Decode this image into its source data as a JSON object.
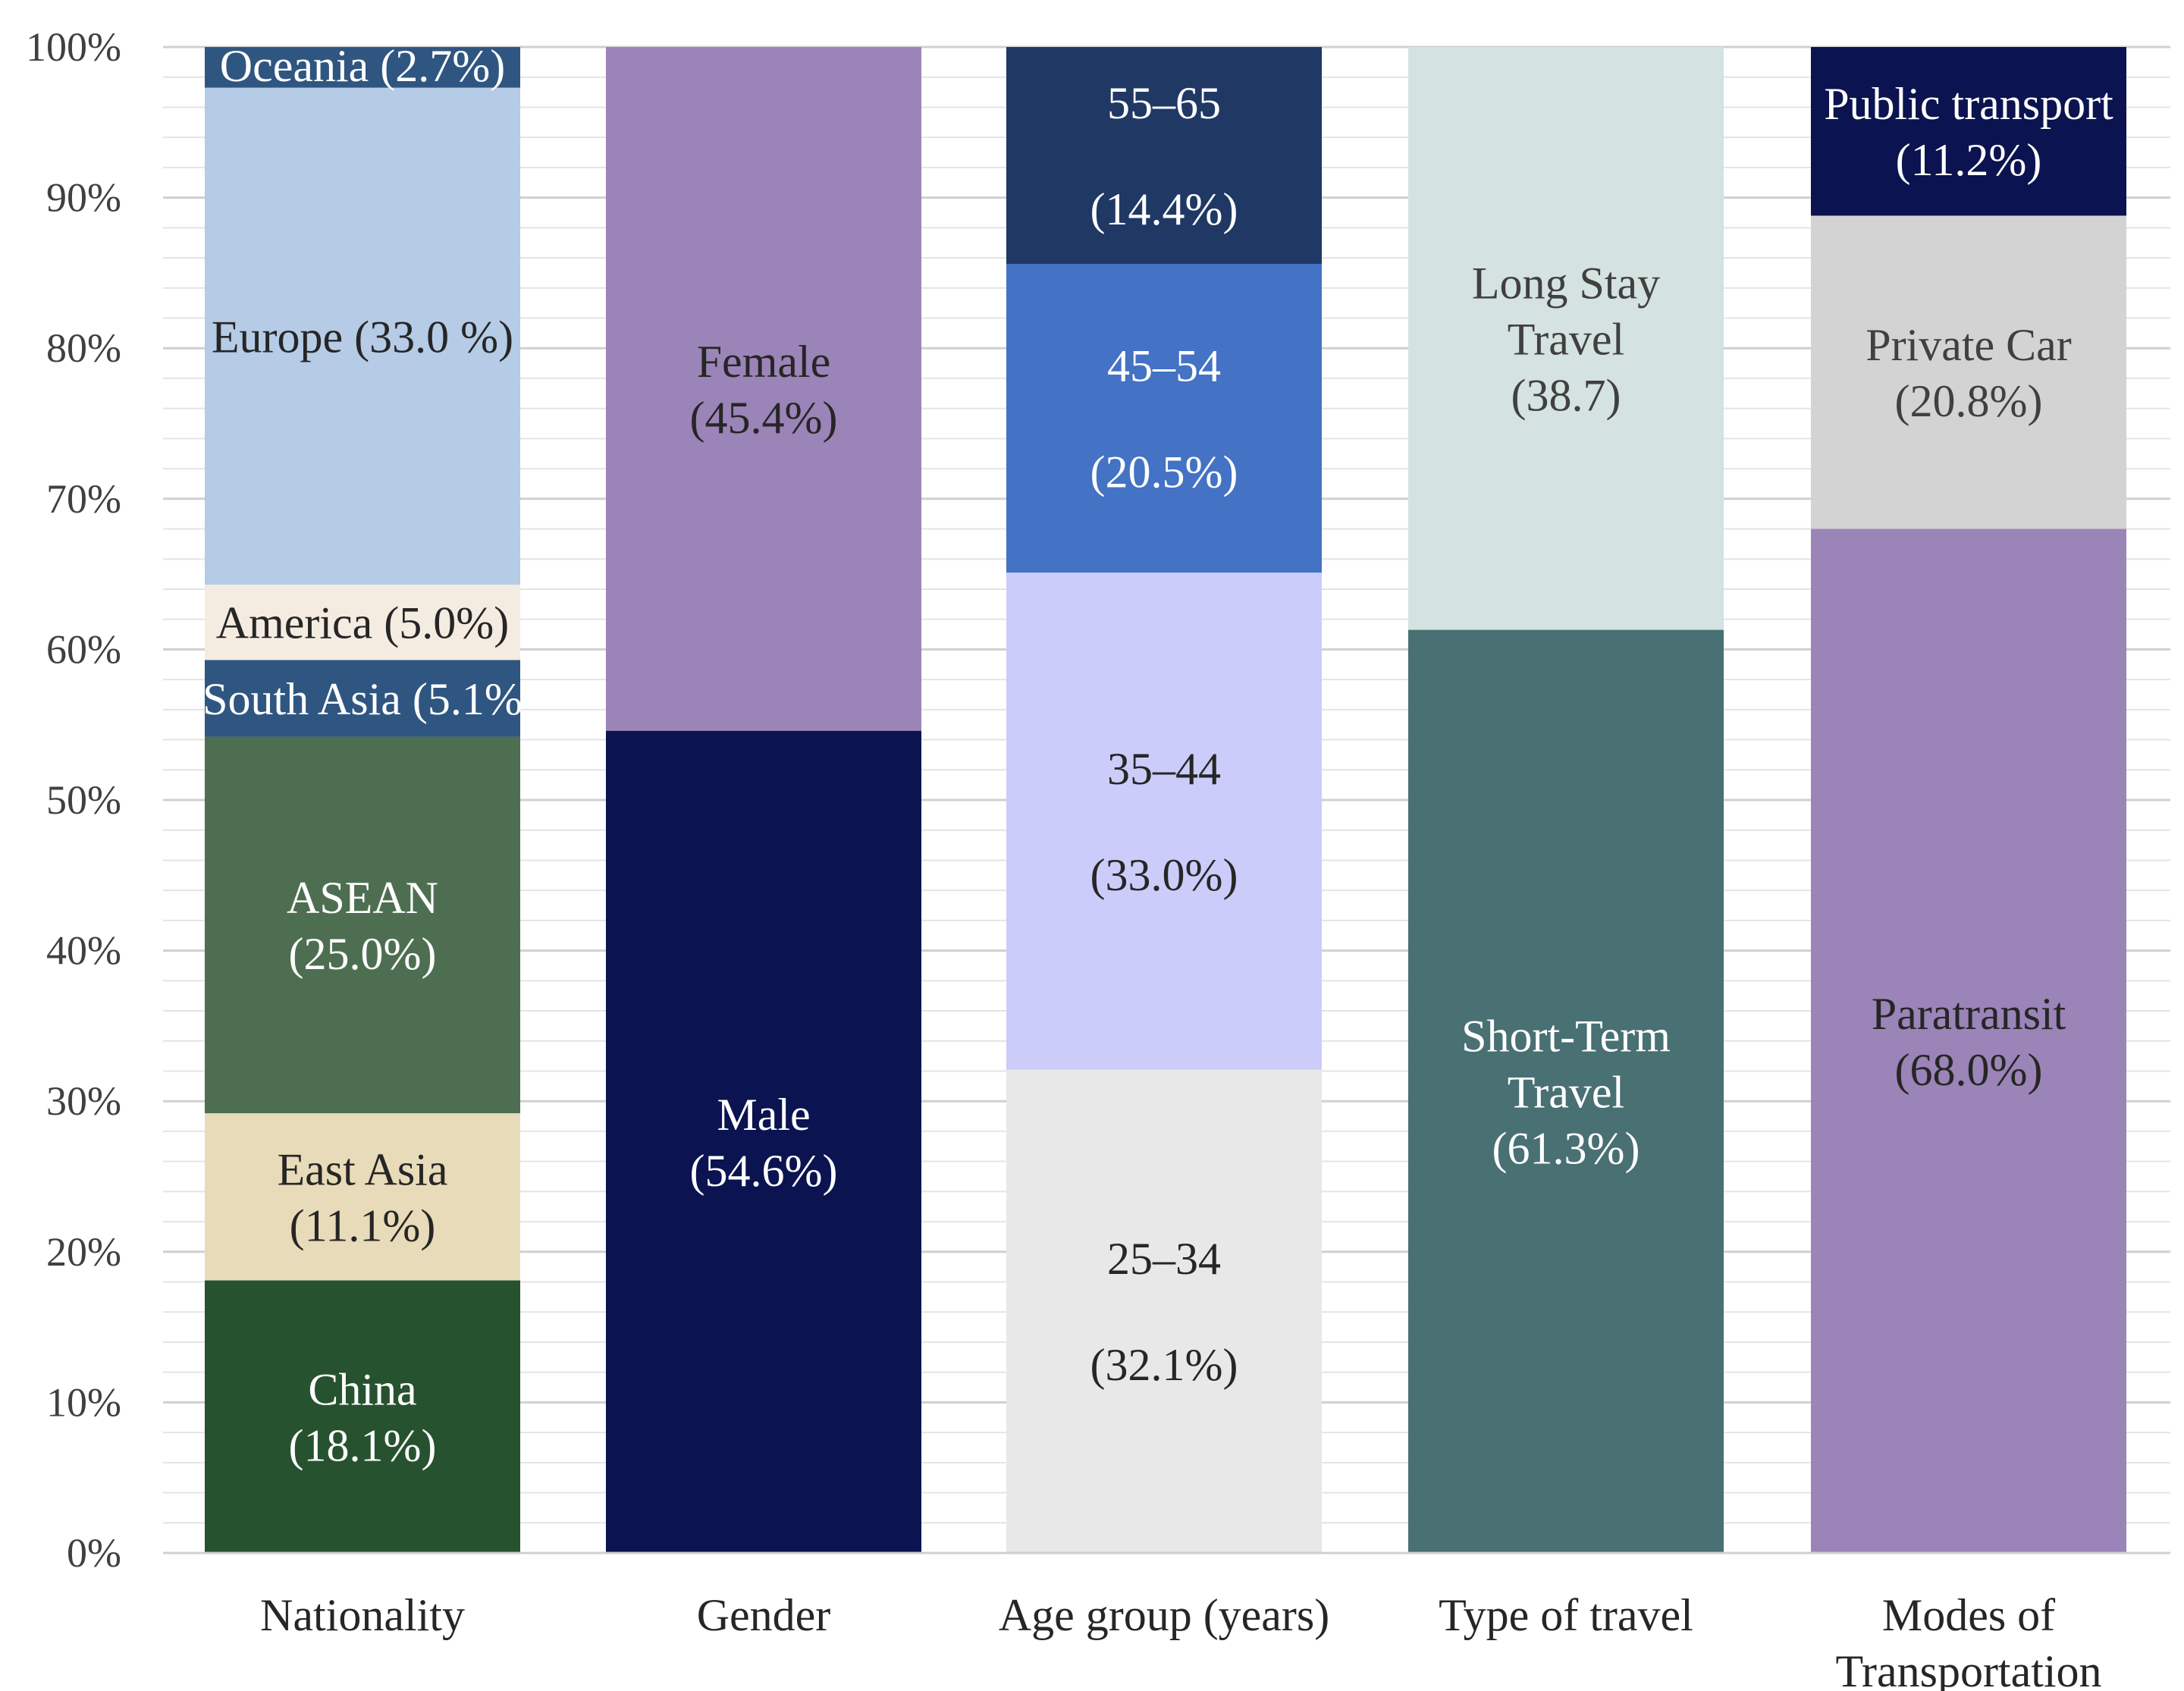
{
  "chart_data": {
    "type": "bar",
    "stacked": true,
    "percent_stacked": true,
    "title": "",
    "xlabel": "",
    "ylabel": "",
    "ylim": [
      0,
      100
    ],
    "yticks": [
      "0%",
      "10%",
      "20%",
      "30%",
      "40%",
      "50%",
      "60%",
      "70%",
      "80%",
      "90%",
      "100%"
    ],
    "grid": true,
    "categories": [
      {
        "name": "Nationality",
        "segments": [
          {
            "label": [
              "China",
              "(18.1%)"
            ],
            "value": 18.1,
            "color": "#27522f",
            "text_color": "#ffffff"
          },
          {
            "label": [
              "East Asia",
              "(11.1%)"
            ],
            "value": 11.1,
            "color": "#e8dbb9",
            "text_color": "#262626"
          },
          {
            "label": [
              "ASEAN",
              "(25.0%)"
            ],
            "value": 25.0,
            "color": "#4e6e51",
            "text_color": "#ffffff"
          },
          {
            "label": [
              "South Asia (5.1%"
            ],
            "value": 5.1,
            "color": "#2f5681",
            "text_color": "#ffffff"
          },
          {
            "label": [
              "America (5.0%)"
            ],
            "value": 5.0,
            "color": "#f5ece1",
            "text_color": "#262626"
          },
          {
            "label": [
              "Europe (33.0 %)"
            ],
            "value": 33.0,
            "color": "#b5cbe6",
            "text_color": "#262626"
          },
          {
            "label": [
              "Oceania (2.7%)"
            ],
            "value": 2.7,
            "color": "#2f5681",
            "text_color": "#ffffff"
          }
        ]
      },
      {
        "name": "Gender",
        "segments": [
          {
            "label": [
              "Male",
              "(54.6%)"
            ],
            "value": 54.6,
            "color": "#0b1350",
            "text_color": "#ffffff"
          },
          {
            "label": [
              "Female",
              "(45.4%)"
            ],
            "value": 45.4,
            "color": "#9b84b8",
            "text_color": "#262626"
          }
        ]
      },
      {
        "name": "Age group (years)",
        "segments": [
          {
            "label": [
              "25–34",
              "(32.1%)"
            ],
            "value": 32.1,
            "color": "#e8e8e8",
            "text_color": "#262626"
          },
          {
            "label": [
              "35–44",
              "(33.0%)"
            ],
            "value": 33.0,
            "color": "#ccccfa",
            "text_color": "#262626"
          },
          {
            "label": [
              "45–54",
              "(20.5%)"
            ],
            "value": 20.5,
            "color": "#4472c4",
            "text_color": "#ffffff"
          },
          {
            "label": [
              "55–65",
              "(14.4%)"
            ],
            "value": 14.4,
            "color": "#203864",
            "text_color": "#ffffff"
          }
        ]
      },
      {
        "name": "Type of travel",
        "segments": [
          {
            "label": [
              "Short-Term",
              "Travel",
              "(61.3%)"
            ],
            "value": 61.3,
            "color": "#497073",
            "text_color": "#ffffff"
          },
          {
            "label": [
              "Long Stay",
              "Travel",
              "(38.7)"
            ],
            "value": 38.7,
            "color": "#d4e2e0",
            "text_color": "#404040"
          }
        ]
      },
      {
        "name": "Modes of Transportation",
        "name_lines": [
          "Modes of",
          "Transportation"
        ],
        "segments": [
          {
            "label": [
              "Paratransit",
              "(68.0%)"
            ],
            "value": 68.0,
            "color": "#9b84b8",
            "text_color": "#262626"
          },
          {
            "label": [
              "Private Car",
              "(20.8%)"
            ],
            "value": 20.8,
            "color": "#d3d3d3",
            "text_color": "#404040"
          },
          {
            "label": [
              "Public transport",
              "(11.2%)"
            ],
            "value": 11.2,
            "color": "#0b1350",
            "text_color": "#ffffff"
          }
        ]
      }
    ]
  }
}
